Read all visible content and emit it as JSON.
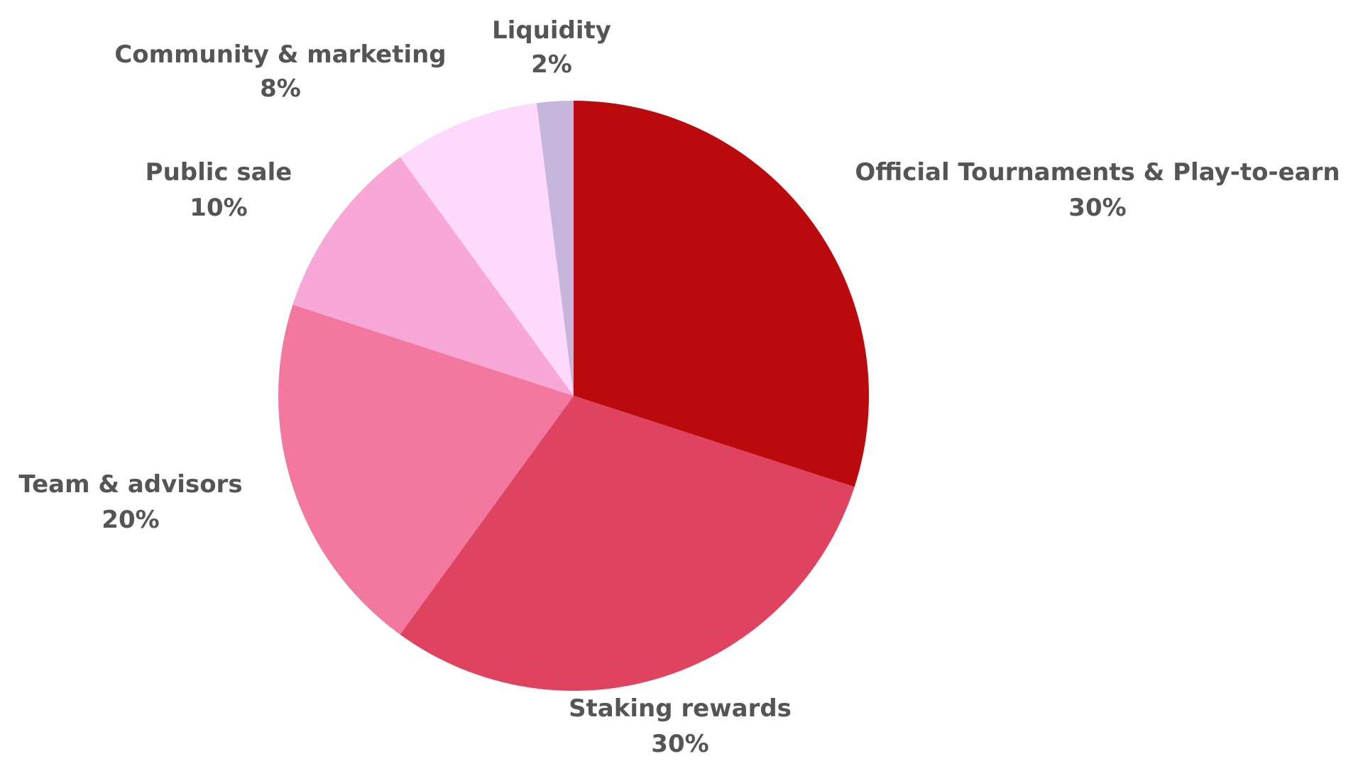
{
  "chart_data": {
    "type": "pie",
    "title": "",
    "start_angle_deg": 0,
    "direction": "clockwise",
    "legend": "none",
    "slices": [
      {
        "label": "Official Tournaments & Play-to-earn",
        "value": 30,
        "display": "30%",
        "color": "#BB0A0E"
      },
      {
        "label": "Staking rewards",
        "value": 30,
        "display": "30%",
        "color": "#E0435F"
      },
      {
        "label": "Team & advisors",
        "value": 20,
        "display": "20%",
        "color": "#F378A0"
      },
      {
        "label": "Public sale",
        "value": 10,
        "display": "10%",
        "color": "#F8A8D6"
      },
      {
        "label": "Community & marketing",
        "value": 8,
        "display": "8%",
        "color": "#FFD9FD"
      },
      {
        "label": "Liquidity",
        "value": 2,
        "display": "2%",
        "color": "#C6B6DC"
      }
    ]
  }
}
